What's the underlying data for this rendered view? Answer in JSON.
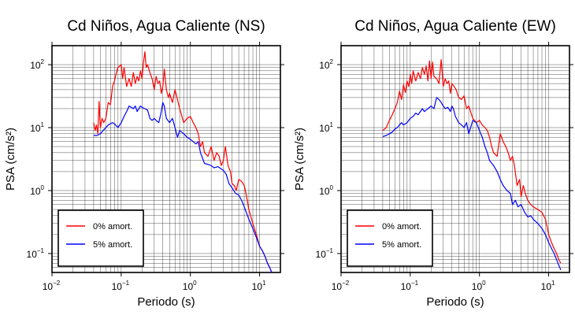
{
  "chart_data": [
    {
      "type": "line",
      "title": "Cd Niños, Agua Caliente (NS)",
      "xlabel": "Periodo (s)",
      "ylabel": "PSA (cm/s²)",
      "xscale": "log",
      "yscale": "log",
      "xlim": [
        0.01,
        20
      ],
      "ylim": [
        0.05,
        200
      ],
      "x_tick_labels": [
        {
          "base": "10",
          "exp": "−2"
        },
        {
          "base": "10",
          "exp": "−1"
        },
        {
          "base": "10",
          "exp": "0"
        },
        {
          "base": "10",
          "exp": "1"
        }
      ],
      "y_tick_labels": [
        {
          "base": "10",
          "exp": "−1"
        },
        {
          "base": "10",
          "exp": "0"
        },
        {
          "base": "10",
          "exp": "1"
        },
        {
          "base": "10",
          "exp": "2"
        }
      ],
      "grid": true,
      "legend_position": "bottom-left",
      "series": [
        {
          "name": "0% amort.",
          "color": "#ff0000",
          "x": [
            0.04,
            0.042,
            0.044,
            0.046,
            0.048,
            0.05,
            0.053,
            0.056,
            0.06,
            0.065,
            0.07,
            0.075,
            0.08,
            0.085,
            0.09,
            0.095,
            0.1,
            0.105,
            0.11,
            0.12,
            0.13,
            0.14,
            0.15,
            0.16,
            0.17,
            0.18,
            0.19,
            0.2,
            0.21,
            0.22,
            0.23,
            0.24,
            0.26,
            0.28,
            0.3,
            0.32,
            0.34,
            0.36,
            0.38,
            0.4,
            0.42,
            0.45,
            0.48,
            0.5,
            0.55,
            0.6,
            0.65,
            0.7,
            0.8,
            0.9,
            1.0,
            1.1,
            1.2,
            1.3,
            1.4,
            1.5,
            1.6,
            1.8,
            2.0,
            2.2,
            2.4,
            2.6,
            2.8,
            3.0,
            3.2,
            3.5,
            3.8,
            4.0,
            4.3,
            4.6,
            5.0,
            5.5,
            6.0,
            6.5,
            7.0,
            8.0,
            9.0,
            10.0,
            11.0,
            12.0,
            13.0,
            14.0,
            15.0
          ],
          "y": [
            12,
            9,
            11,
            8,
            26,
            10,
            14,
            12,
            14,
            25,
            23,
            45,
            55,
            75,
            90,
            95,
            100,
            60,
            90,
            45,
            60,
            45,
            75,
            50,
            65,
            55,
            80,
            60,
            110,
            160,
            90,
            100,
            75,
            60,
            40,
            65,
            50,
            55,
            35,
            45,
            85,
            40,
            30,
            35,
            25,
            40,
            28,
            20,
            12,
            14,
            15,
            12,
            10,
            8,
            5,
            6,
            4,
            3.5,
            5,
            3,
            4,
            3.5,
            2.5,
            3,
            5,
            2.5,
            2,
            1.3,
            1.2,
            1.0,
            1.5,
            1.4,
            1.2,
            0.8,
            0.5,
            0.3,
            0.2,
            0.13,
            0.11,
            0.09,
            0.07,
            0.06,
            0.05
          ]
        },
        {
          "name": "5% amort.",
          "color": "#0000ff",
          "x": [
            0.04,
            0.045,
            0.05,
            0.055,
            0.06,
            0.065,
            0.07,
            0.075,
            0.08,
            0.09,
            0.1,
            0.11,
            0.12,
            0.13,
            0.14,
            0.15,
            0.16,
            0.17,
            0.18,
            0.19,
            0.2,
            0.22,
            0.24,
            0.26,
            0.28,
            0.3,
            0.32,
            0.35,
            0.38,
            0.4,
            0.42,
            0.45,
            0.5,
            0.55,
            0.6,
            0.65,
            0.7,
            0.8,
            0.9,
            1.0,
            1.1,
            1.2,
            1.3,
            1.4,
            1.6,
            1.8,
            2.0,
            2.2,
            2.5,
            2.8,
            3.0,
            3.3,
            3.6,
            4.0,
            4.5,
            5.0,
            5.5,
            6.0,
            7.0,
            8.0,
            9.0,
            10.0,
            11.0,
            12.0,
            13.0,
            14.0,
            15.0
          ],
          "y": [
            7.5,
            7.5,
            8,
            9,
            10,
            11,
            11.5,
            12,
            11.5,
            10,
            12,
            15,
            18,
            22,
            21,
            20,
            22,
            18,
            20,
            22,
            21,
            20,
            19,
            14,
            13,
            14,
            13,
            12,
            18,
            25,
            22,
            14,
            12,
            14,
            10,
            7,
            9,
            8,
            7,
            6.5,
            6,
            5.5,
            6,
            4,
            2.7,
            2.6,
            2.5,
            2.3,
            2.4,
            2.2,
            2.1,
            1.8,
            1.3,
            1.1,
            0.9,
            0.85,
            0.7,
            0.55,
            0.35,
            0.25,
            0.18,
            0.13,
            0.11,
            0.09,
            0.07,
            0.06,
            0.05
          ]
        }
      ]
    },
    {
      "type": "line",
      "title": "Cd Niños, Agua Caliente (EW)",
      "xlabel": "Periodo (s)",
      "ylabel": "PSA (cm/s²)",
      "xscale": "log",
      "yscale": "log",
      "xlim": [
        0.01,
        20
      ],
      "ylim": [
        0.05,
        200
      ],
      "x_tick_labels": [
        {
          "base": "10",
          "exp": "−2"
        },
        {
          "base": "10",
          "exp": "−1"
        },
        {
          "base": "10",
          "exp": "0"
        },
        {
          "base": "10",
          "exp": "1"
        }
      ],
      "y_tick_labels": [
        {
          "base": "10",
          "exp": "−1"
        },
        {
          "base": "10",
          "exp": "0"
        },
        {
          "base": "10",
          "exp": "1"
        },
        {
          "base": "10",
          "exp": "2"
        }
      ],
      "grid": true,
      "legend_position": "bottom-left",
      "series": [
        {
          "name": "0% amort.",
          "color": "#ff0000",
          "x": [
            0.04,
            0.045,
            0.05,
            0.055,
            0.06,
            0.065,
            0.07,
            0.075,
            0.08,
            0.085,
            0.09,
            0.095,
            0.1,
            0.105,
            0.11,
            0.12,
            0.13,
            0.14,
            0.15,
            0.16,
            0.17,
            0.18,
            0.19,
            0.2,
            0.21,
            0.22,
            0.24,
            0.26,
            0.28,
            0.3,
            0.32,
            0.34,
            0.36,
            0.38,
            0.4,
            0.43,
            0.46,
            0.5,
            0.55,
            0.6,
            0.65,
            0.7,
            0.8,
            0.9,
            1.0,
            1.1,
            1.2,
            1.3,
            1.4,
            1.5,
            1.6,
            1.8,
            2.0,
            2.2,
            2.4,
            2.6,
            2.8,
            3.0,
            3.2,
            3.5,
            3.8,
            4.0,
            4.3,
            4.6,
            5.0,
            5.5,
            6.0,
            7.0,
            8.0,
            9.0,
            10.0,
            11.0,
            12.0,
            13.0,
            14.0,
            15.0
          ],
          "y": [
            9,
            10,
            13,
            16,
            20,
            25,
            38,
            28,
            48,
            36,
            55,
            45,
            70,
            50,
            80,
            55,
            75,
            60,
            90,
            70,
            95,
            55,
            115,
            60,
            110,
            65,
            60,
            50,
            120,
            45,
            60,
            50,
            55,
            35,
            50,
            45,
            40,
            30,
            28,
            32,
            20,
            22,
            14,
            12,
            13,
            11,
            10,
            9,
            7,
            5,
            4,
            3.5,
            8,
            6,
            5,
            4,
            3,
            3.5,
            2.5,
            1.2,
            1.5,
            0.8,
            1.2,
            0.9,
            0.7,
            0.6,
            0.55,
            0.5,
            0.45,
            0.35,
            0.2,
            0.15,
            0.12,
            0.1,
            0.08,
            0.07
          ]
        },
        {
          "name": "5% amort.",
          "color": "#0000ff",
          "x": [
            0.04,
            0.045,
            0.05,
            0.055,
            0.06,
            0.065,
            0.07,
            0.075,
            0.08,
            0.09,
            0.1,
            0.11,
            0.12,
            0.13,
            0.14,
            0.15,
            0.16,
            0.17,
            0.18,
            0.19,
            0.2,
            0.22,
            0.24,
            0.26,
            0.28,
            0.3,
            0.32,
            0.35,
            0.38,
            0.4,
            0.42,
            0.45,
            0.5,
            0.55,
            0.6,
            0.65,
            0.7,
            0.8,
            0.9,
            1.0,
            1.1,
            1.2,
            1.3,
            1.4,
            1.6,
            1.8,
            2.0,
            2.2,
            2.5,
            2.8,
            3.0,
            3.3,
            3.6,
            4.0,
            4.5,
            5.0,
            5.5,
            6.0,
            7.0,
            8.0,
            9.0,
            10.0,
            11.0,
            12.0,
            13.0,
            14.0,
            15.0
          ],
          "y": [
            7.2,
            7.5,
            8,
            8.5,
            9.5,
            10,
            11,
            12,
            11,
            12,
            14,
            15,
            17,
            16,
            18,
            20,
            18,
            19,
            20,
            21,
            22,
            20,
            30,
            28,
            25,
            22,
            20,
            21,
            18,
            22,
            20,
            15,
            12,
            11,
            10,
            12,
            8,
            13,
            12,
            9,
            7,
            5,
            4,
            3,
            2.5,
            2,
            1.5,
            1.2,
            1.0,
            0.9,
            0.6,
            0.7,
            0.55,
            0.6,
            0.45,
            0.38,
            0.4,
            0.35,
            0.3,
            0.25,
            0.2,
            0.15,
            0.12,
            0.1,
            0.08,
            0.065,
            0.055
          ]
        }
      ]
    }
  ]
}
